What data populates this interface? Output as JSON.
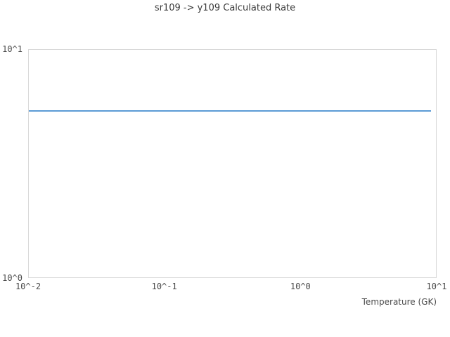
{
  "chart_data": {
    "type": "line",
    "title": "sr109 -> y109 Calculated Rate",
    "xlabel": "Temperature (GK)",
    "ylabel": "",
    "x_scale": "log",
    "y_scale": "log",
    "xlim": [
      0.01,
      10
    ],
    "ylim": [
      1,
      10
    ],
    "grid": false,
    "legend": "none",
    "x_tick_values": [
      0.01,
      0.1,
      1,
      10
    ],
    "x_tick_labels": [
      "10^-2",
      "10^-1",
      "10^0",
      "10^1"
    ],
    "y_tick_values": [
      1,
      10
    ],
    "y_tick_labels": [
      "10^0",
      "10^1"
    ],
    "series": [
      {
        "name": "calculated-rate",
        "color": "#5B9BD5",
        "x": [
          0.01,
          9.0
        ],
        "y": [
          5.4,
          5.4
        ]
      }
    ]
  },
  "colors": {
    "plot_border": "#d9d9d9",
    "title_text": "#3a3a3a",
    "tick_text": "#4a4a4a",
    "background": "#ffffff"
  }
}
